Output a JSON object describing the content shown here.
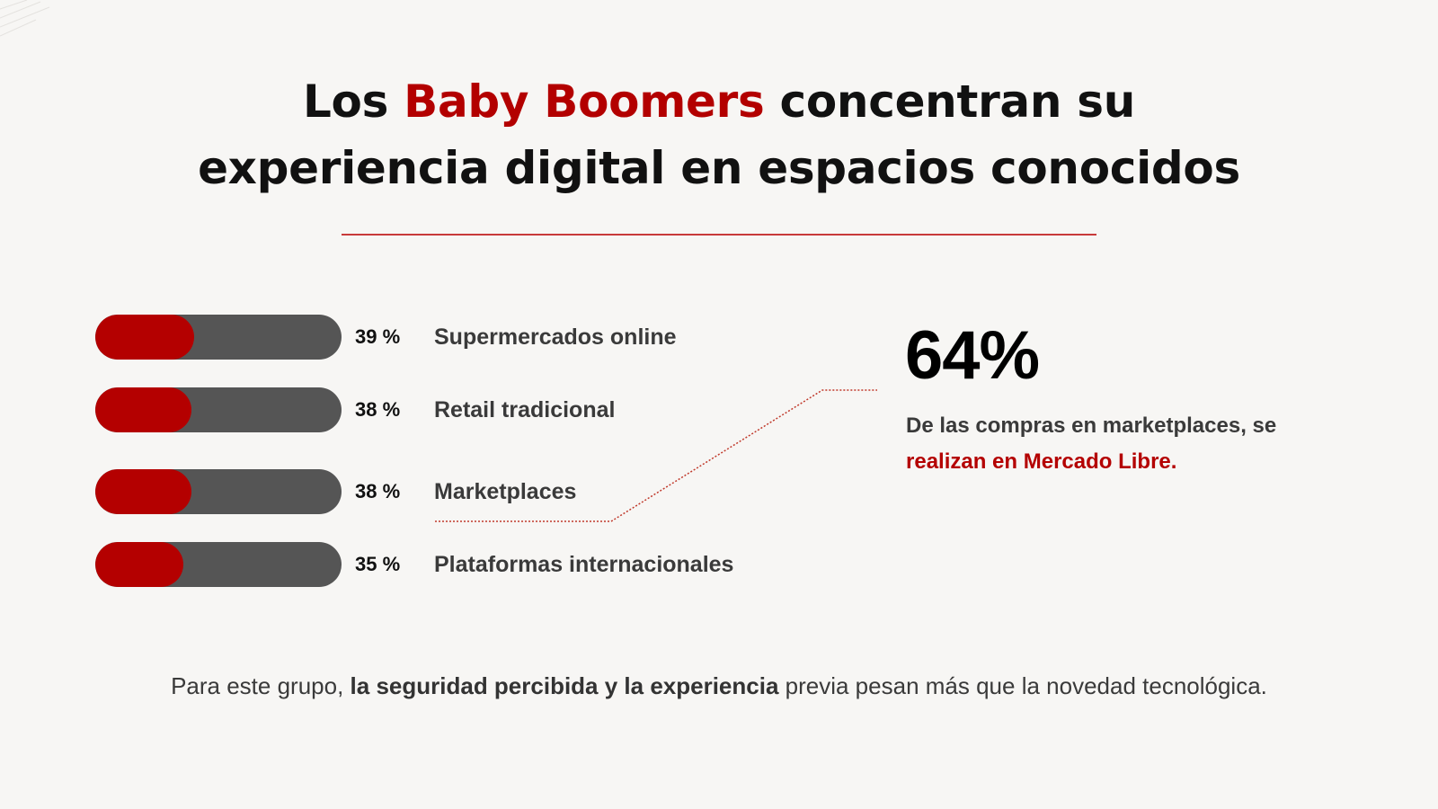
{
  "title": {
    "prefix": "Los ",
    "highlight": "Baby Boomers",
    "line1_rest": " concentran su",
    "line2": "experiencia digital en espacios conocidos"
  },
  "chart_data": {
    "type": "bar",
    "categories": [
      "Supermercados online",
      "Retail tradicional",
      "Marketplaces",
      "Plataformas internacionales"
    ],
    "values": [
      39,
      38,
      38,
      35
    ],
    "value_labels": [
      "39 %",
      "38 %",
      "38 %",
      "35 %"
    ],
    "xlim": [
      0,
      100
    ],
    "title": "",
    "xlabel": "",
    "ylabel": ""
  },
  "callout": {
    "stat": "64%",
    "desc_plain": "De las compras en marketplaces, se ",
    "desc_highlight": "realizan en Mercado Libre."
  },
  "footer": {
    "pre": "Para este grupo, ",
    "bold": "la seguridad percibida y la experiencia",
    "post": " previa pesan más que la novedad tecnológica."
  },
  "colors": {
    "accent": "#b40000",
    "track": "#555555",
    "background": "#f7f6f4"
  }
}
